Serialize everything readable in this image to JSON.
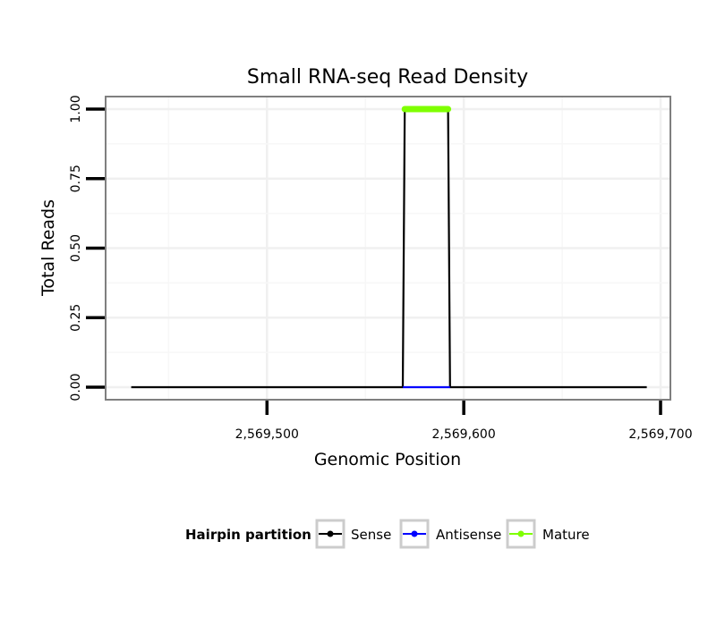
{
  "chart_data": {
    "type": "line",
    "title": "Small RNA-seq Read Density",
    "xlabel": "Genomic Position",
    "ylabel": "Total Reads",
    "xlim": [
      2569418,
      2569705
    ],
    "ylim": [
      -0.045,
      1.045
    ],
    "x_ticks": [
      2569500,
      2569600,
      2569700
    ],
    "x_tick_labels": [
      "2,569,500",
      "2,569,600",
      "2,569,700"
    ],
    "y_ticks": [
      0,
      0.25,
      0.5,
      0.75,
      1
    ],
    "y_tick_labels": [
      "0.00",
      "0.25",
      "0.50",
      "0.75",
      "1.00"
    ],
    "grid": true,
    "legend": {
      "title": "Hairpin partition",
      "position": "bottom",
      "entries": [
        "Sense",
        "Antisense",
        "Mature"
      ]
    },
    "series": [
      {
        "name": "Sense",
        "color": "#000000",
        "x": [
          2569431,
          2569569,
          2569570,
          2569592,
          2569593,
          2569693
        ],
        "y": [
          0,
          0,
          1,
          1,
          0,
          0
        ]
      },
      {
        "name": "Antisense",
        "color": "#0000ff",
        "x": [
          2569569,
          2569593
        ],
        "y": [
          0,
          0
        ]
      },
      {
        "name": "Mature",
        "color": "#7fff00",
        "x": [
          2569570,
          2569592
        ],
        "y": [
          1,
          1
        ]
      }
    ]
  }
}
